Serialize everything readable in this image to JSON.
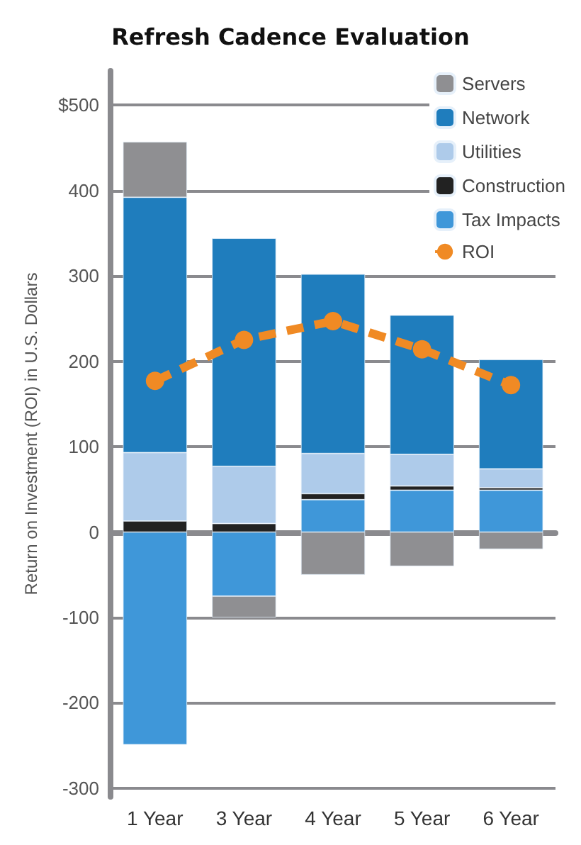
{
  "chart_data": {
    "type": "bar",
    "stacked": true,
    "title": "Refresh Cadence Evaluation",
    "ylabel": "Return on Investment (ROI) in U.S. Dollars",
    "categories": [
      "1 Year",
      "3 Year",
      "4 Year",
      "5 Year",
      "6 Year"
    ],
    "series": [
      {
        "name": "Tax Impacts",
        "color": "#3f97d9",
        "values": [
          -249,
          -75,
          38,
          49,
          49
        ]
      },
      {
        "name": "Construction",
        "color": "#222222",
        "values": [
          13,
          10,
          7,
          5,
          3
        ]
      },
      {
        "name": "Utilities",
        "color": "#aecbea",
        "values": [
          80,
          67,
          47,
          37,
          22
        ]
      },
      {
        "name": "Network",
        "color": "#1f7dbd",
        "values": [
          299,
          267,
          210,
          163,
          128
        ]
      },
      {
        "name": "Servers",
        "color": "#8f8f92",
        "values": [
          65,
          -25,
          -50,
          -40,
          -20
        ]
      },
      {
        "name": "ROI",
        "type": "line",
        "color": "#f08a24",
        "values": [
          177,
          225,
          247,
          214,
          172
        ],
        "marker": "circle",
        "line_style": "dashed"
      }
    ],
    "ylim": [
      -310,
      540
    ],
    "yticks": [
      -300,
      -200,
      -100,
      0,
      100,
      200,
      300,
      400,
      {
        "value": 500,
        "label": "$500"
      }
    ],
    "grid": "y",
    "legend": "top right"
  }
}
